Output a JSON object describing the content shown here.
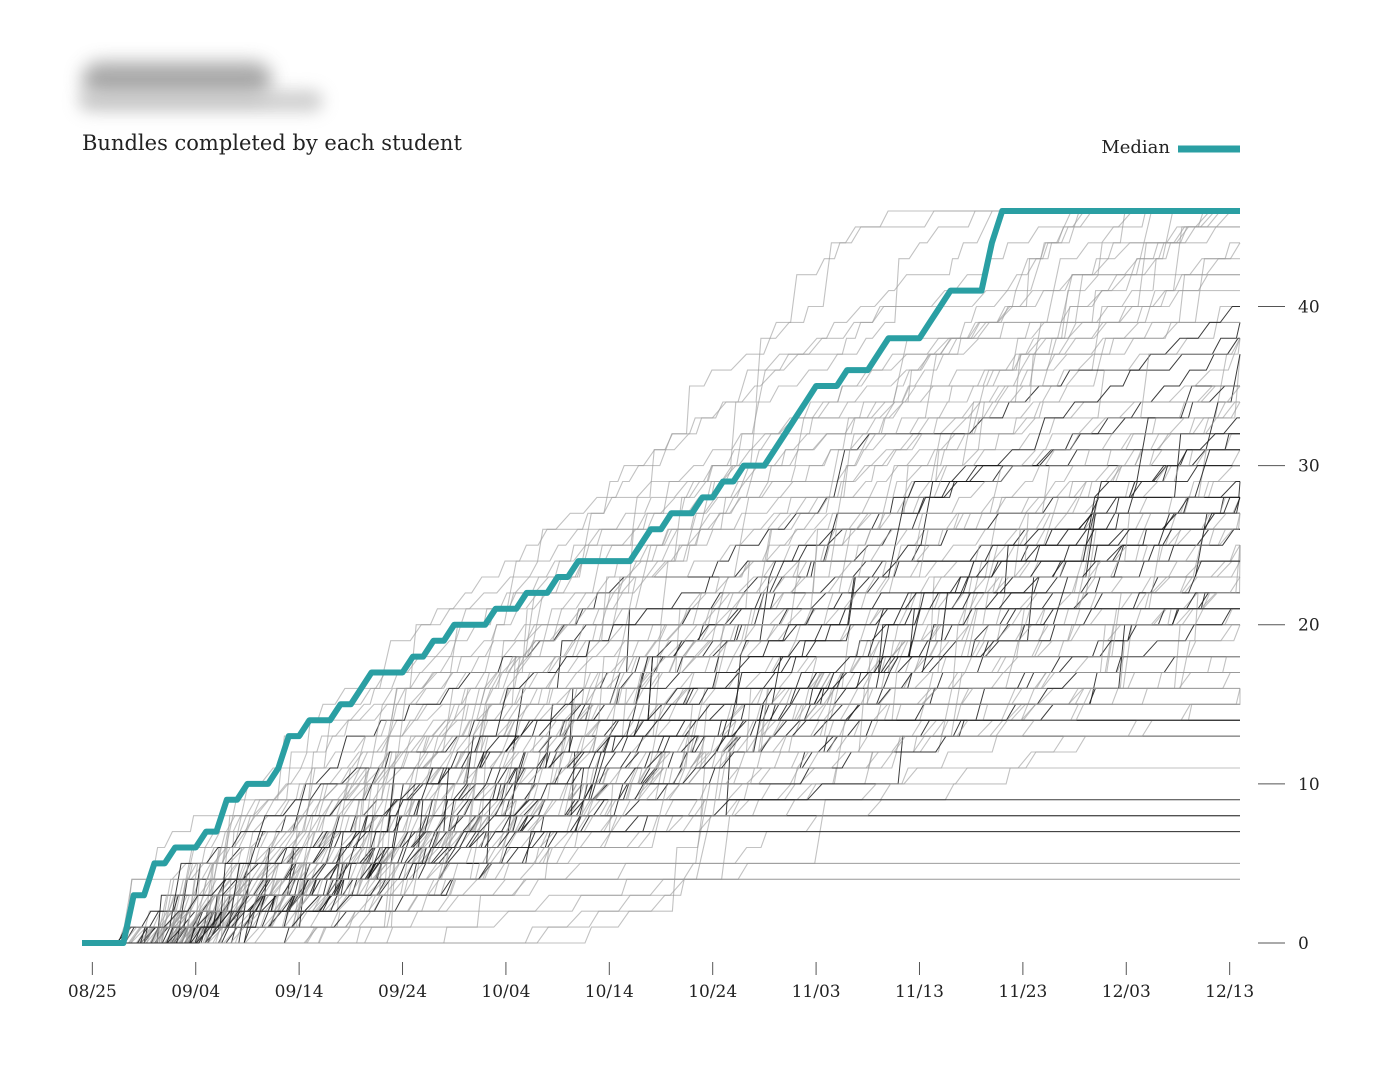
{
  "chart_data": {
    "type": "line",
    "title": "",
    "subtitle": "Bundles completed by each student",
    "xlabel": "",
    "ylabel": "",
    "x_ticks": [
      "08/25",
      "09/04",
      "09/14",
      "09/24",
      "10/04",
      "10/14",
      "10/24",
      "11/03",
      "11/13",
      "11/23",
      "12/03",
      "12/13"
    ],
    "y_ticks": [
      0,
      10,
      20,
      30,
      40
    ],
    "xlim": [
      "08/24",
      "12/14"
    ],
    "ylim": [
      0,
      46
    ],
    "y_axis_side": "right",
    "grid": false,
    "legend": {
      "position": "top-right",
      "entries": [
        {
          "name": "Median",
          "color": "#2a9fa3"
        }
      ]
    },
    "colors": {
      "median": "#2a9fa3",
      "student_dark": "#1a1a1a",
      "student_light": "#9a9a9a"
    },
    "series": [
      {
        "name": "Median",
        "x": [
          "08/24",
          "08/28",
          "08/29",
          "08/30",
          "08/31",
          "09/01",
          "09/02",
          "09/03",
          "09/04",
          "09/05",
          "09/06",
          "09/07",
          "09/08",
          "09/09",
          "09/10",
          "09/11",
          "09/12",
          "09/13",
          "09/14",
          "09/15",
          "09/16",
          "09/17",
          "09/18",
          "09/19",
          "09/20",
          "09/21",
          "09/22",
          "09/23",
          "09/24",
          "09/25",
          "09/26",
          "09/27",
          "09/28",
          "09/29",
          "09/30",
          "10/01",
          "10/02",
          "10/03",
          "10/04",
          "10/05",
          "10/06",
          "10/07",
          "10/08",
          "10/09",
          "10/10",
          "10/11",
          "10/12",
          "10/13",
          "10/14",
          "10/15",
          "10/16",
          "10/17",
          "10/18",
          "10/19",
          "10/20",
          "10/21",
          "10/22",
          "10/23",
          "10/24",
          "10/25",
          "10/26",
          "10/27",
          "10/28",
          "10/29",
          "10/30",
          "10/31",
          "11/01",
          "11/02",
          "11/03",
          "11/04",
          "11/05",
          "11/06",
          "11/07",
          "11/08",
          "11/09",
          "11/10",
          "11/11",
          "11/12",
          "11/13",
          "11/14",
          "11/15",
          "11/16",
          "11/17",
          "11/18",
          "11/19",
          "11/20",
          "11/21",
          "11/22",
          "11/23",
          "11/24",
          "11/25",
          "11/26",
          "11/27",
          "11/28",
          "11/29",
          "11/30",
          "12/01",
          "12/02",
          "12/03",
          "12/04",
          "12/05",
          "12/06",
          "12/07",
          "12/08",
          "12/09",
          "12/10",
          "12/11",
          "12/12",
          "12/13",
          "12/14"
        ],
        "y": [
          0,
          0,
          3,
          3,
          5,
          5,
          6,
          6,
          6,
          7,
          7,
          9,
          9,
          10,
          10,
          10,
          11,
          13,
          13,
          14,
          14,
          14,
          15,
          15,
          16,
          17,
          17,
          17,
          17,
          18,
          18,
          19,
          19,
          20,
          20,
          20,
          20,
          21,
          21,
          21,
          22,
          22,
          22,
          23,
          23,
          24,
          24,
          24,
          24,
          24,
          24,
          25,
          26,
          26,
          27,
          27,
          27,
          28,
          28,
          29,
          29,
          30,
          30,
          30,
          31,
          32,
          33,
          34,
          35,
          35,
          35,
          36,
          36,
          36,
          37,
          38,
          38,
          38,
          38,
          39,
          40,
          41,
          41,
          41,
          41,
          44,
          46,
          46,
          46,
          46,
          46,
          46,
          46,
          46,
          46,
          46,
          46,
          46,
          46,
          46,
          46,
          46,
          46,
          46,
          46,
          46,
          46,
          46,
          46,
          46
        ]
      }
    ]
  }
}
